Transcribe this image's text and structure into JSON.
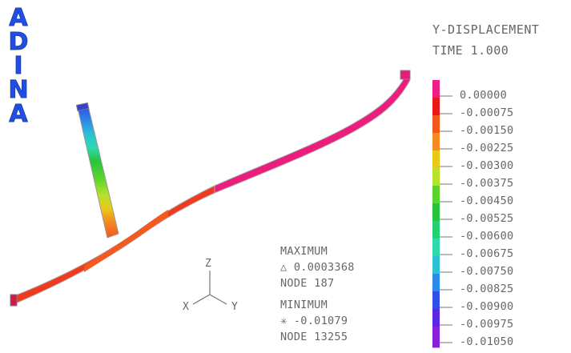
{
  "logo": {
    "letters": [
      "A",
      "D",
      "I",
      "N",
      "A"
    ]
  },
  "legend": {
    "title": "Y-DISPLACEMENT",
    "time": "TIME 1.000",
    "levels": [
      "0.00000",
      "-0.00075",
      "-0.00150",
      "-0.00225",
      "-0.00300",
      "-0.00375",
      "-0.00450",
      "-0.00525",
      "-0.00600",
      "-0.00675",
      "-0.00750",
      "-0.00825",
      "-0.00900",
      "-0.00975",
      "-0.01050"
    ],
    "colors": [
      "#ef1e86",
      "#e81818",
      "#f2561b",
      "#f58a22",
      "#e9c816",
      "#b7e22c",
      "#5ad42c",
      "#29c43e",
      "#27cf73",
      "#2dd9ad",
      "#2bc3d4",
      "#2c8be8",
      "#2f4fe6",
      "#5a28e0",
      "#8a1fd9"
    ]
  },
  "extremes": {
    "max_title": "MAXIMUM",
    "max_value": "△  0.0003368",
    "max_node": "NODE 187",
    "min_title": "MINIMUM",
    "min_value": "✳  -0.01079",
    "min_node": "NODE 13255"
  },
  "axes": {
    "z": "Z",
    "x": "X",
    "y": "Y"
  }
}
